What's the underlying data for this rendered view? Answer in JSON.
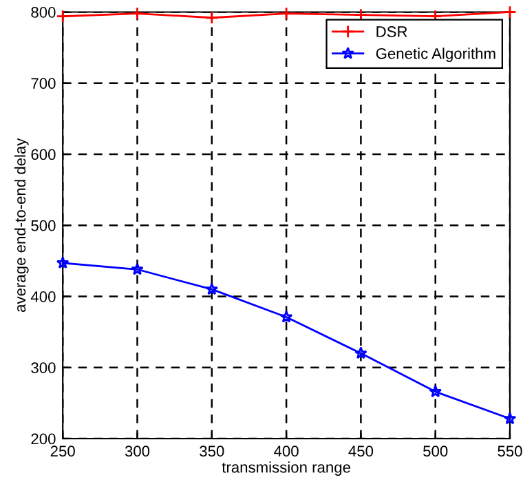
{
  "chart_data": {
    "type": "line",
    "xlabel": "transmission range",
    "ylabel": "average end-to-end delay",
    "x": [
      250,
      300,
      350,
      400,
      450,
      500,
      550
    ],
    "series": [
      {
        "name": "DSR",
        "color": "#ff0000",
        "values": [
          794,
          798,
          792,
          798,
          796,
          794,
          800
        ],
        "marker": "cross"
      },
      {
        "name": "Genetic Algorithm",
        "color": "#0000ff",
        "values": [
          447,
          438,
          410,
          371,
          320,
          266,
          228
        ],
        "marker": "star"
      }
    ],
    "xlim": [
      250,
      550
    ],
    "xticks": [
      250,
      300,
      350,
      400,
      450,
      500,
      550
    ],
    "ylim": [
      200,
      800
    ],
    "yticks": [
      200,
      300,
      400,
      500,
      600,
      700,
      800
    ],
    "grid": true,
    "legend": "top right",
    "line_style": "solid"
  }
}
